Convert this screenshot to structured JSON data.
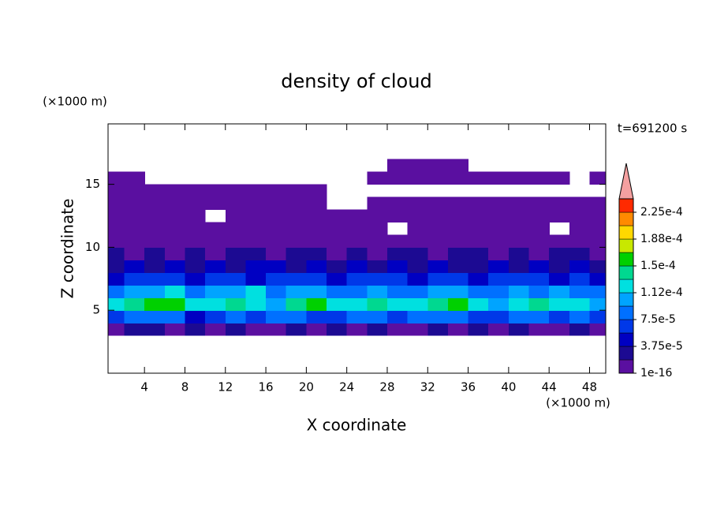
{
  "chart_data": {
    "type": "contour",
    "title": "density of cloud",
    "x_label": "X coordinate",
    "y_label": "Z coordinate",
    "x_unit": "(×1000 m)",
    "y_unit": "(×1000 m)",
    "annotation": "t=691200 s",
    "xlim": [
      0.4,
      49.6
    ],
    "ylim": [
      0,
      19.8
    ],
    "xticks": [
      4,
      8,
      12,
      16,
      20,
      24,
      28,
      32,
      36,
      40,
      44,
      48
    ],
    "yticks": [
      5,
      10,
      15
    ],
    "x": [
      1,
      3,
      5,
      7,
      9,
      11,
      13,
      15,
      17,
      19,
      21,
      23,
      25,
      27,
      29,
      31,
      33,
      35,
      37,
      39,
      41,
      43,
      45,
      47,
      49
    ],
    "z": [
      3.5,
      4.5,
      5.5,
      6.5,
      7.5,
      8.5,
      9.5,
      10.5,
      11.5,
      12.5,
      13.5,
      14.5,
      15.5,
      16.5
    ],
    "values": [
      [
        1e-05,
        2e-05,
        2e-05,
        1e-05,
        2e-05,
        1e-05,
        2e-05,
        1e-05,
        1e-05,
        2e-05,
        1e-05,
        2e-05,
        1e-05,
        2e-05,
        1e-05,
        1e-05,
        2e-05,
        1e-05,
        2e-05,
        1e-05,
        2e-05,
        1e-05,
        1e-05,
        2e-05,
        1e-05
      ],
      [
        6e-05,
        8e-05,
        9e-05,
        8e-05,
        5e-05,
        7e-05,
        8e-05,
        6e-05,
        9e-05,
        8e-05,
        7e-05,
        6e-05,
        8e-05,
        9e-05,
        7e-05,
        8e-05,
        9e-05,
        8e-05,
        7e-05,
        6e-05,
        8e-05,
        9e-05,
        7e-05,
        8e-05,
        6e-05
      ],
      [
        0.00012,
        0.00014,
        0.000155,
        0.00016,
        0.00013,
        0.00012,
        0.000135,
        0.00013,
        0.00011,
        0.00014,
        0.000155,
        0.00012,
        0.00013,
        0.00014,
        0.00013,
        0.00012,
        0.000145,
        0.00015,
        0.00012,
        0.00011,
        0.00013,
        0.00014,
        0.00012,
        0.00013,
        0.00011
      ],
      [
        9e-05,
        0.00011,
        0.0001,
        0.000115,
        9e-05,
        0.0001,
        0.00011,
        0.000115,
        9e-05,
        0.0001,
        0.00011,
        8e-05,
        9e-05,
        0.0001,
        8e-05,
        9e-05,
        0.00011,
        0.0001,
        9e-05,
        8e-05,
        0.0001,
        9e-05,
        0.00011,
        8e-05,
        9e-05
      ],
      [
        5e-05,
        6e-05,
        7e-05,
        6e-05,
        5e-05,
        6e-05,
        7e-05,
        5e-05,
        6e-05,
        7e-05,
        6e-05,
        5e-05,
        6e-05,
        7e-05,
        6e-05,
        5e-05,
        6e-05,
        7e-05,
        5e-05,
        6e-05,
        7e-05,
        6e-05,
        5e-05,
        6e-05,
        5e-05
      ],
      [
        3e-05,
        4e-05,
        3e-05,
        4e-05,
        3e-05,
        4e-05,
        3e-05,
        4e-05,
        4e-05,
        3e-05,
        4e-05,
        3e-05,
        4e-05,
        3e-05,
        4e-05,
        3e-05,
        4e-05,
        3e-05,
        3e-05,
        4e-05,
        3e-05,
        4e-05,
        3e-05,
        4e-05,
        3e-05
      ],
      [
        2e-05,
        1.5e-05,
        2.5e-05,
        1.5e-05,
        2e-05,
        1.5e-05,
        2.5e-05,
        2e-05,
        1.5e-05,
        2e-05,
        2.5e-05,
        1.5e-05,
        2e-05,
        1.5e-05,
        2.5e-05,
        2e-05,
        1.5e-05,
        2e-05,
        2.5e-05,
        1.5e-05,
        2e-05,
        1.5e-05,
        2e-05,
        2.5e-05,
        1.5e-05
      ],
      [
        1e-05,
        1e-05,
        1e-05,
        1e-05,
        1e-05,
        1e-05,
        1e-05,
        1e-05,
        1e-05,
        1e-05,
        1e-05,
        1e-05,
        1e-05,
        1e-05,
        1e-05,
        1e-05,
        1e-05,
        1e-05,
        1e-05,
        1e-05,
        1e-05,
        1e-05,
        1e-05,
        1e-05,
        1e-05
      ],
      [
        5e-06,
        5e-06,
        5e-06,
        5e-06,
        5e-06,
        5e-06,
        5e-06,
        5e-06,
        5e-06,
        5e-06,
        5e-06,
        5e-06,
        5e-06,
        5e-06,
        null,
        5e-06,
        5e-06,
        5e-06,
        5e-06,
        5e-06,
        5e-06,
        5e-06,
        null,
        5e-06,
        5e-06
      ],
      [
        5e-06,
        5e-06,
        5e-06,
        5e-06,
        5e-06,
        null,
        5e-06,
        5e-06,
        5e-06,
        5e-06,
        5e-06,
        5e-06,
        5e-06,
        5e-06,
        5e-06,
        5e-06,
        5e-06,
        5e-06,
        5e-06,
        5e-06,
        5e-06,
        5e-06,
        5e-06,
        5e-06,
        5e-06
      ],
      [
        5e-06,
        5e-06,
        5e-06,
        5e-06,
        5e-06,
        5e-06,
        5e-06,
        5e-06,
        5e-06,
        5e-06,
        5e-06,
        null,
        null,
        5e-06,
        5e-06,
        5e-06,
        5e-06,
        5e-06,
        5e-06,
        5e-06,
        5e-06,
        5e-06,
        5e-06,
        5e-06,
        5e-06
      ],
      [
        5e-06,
        5e-06,
        5e-06,
        5e-06,
        5e-06,
        5e-06,
        5e-06,
        5e-06,
        5e-06,
        5e-06,
        5e-06,
        null,
        null,
        null,
        null,
        null,
        null,
        null,
        null,
        null,
        null,
        null,
        null,
        null,
        null
      ],
      [
        5e-06,
        5e-06,
        null,
        null,
        null,
        null,
        null,
        null,
        null,
        null,
        null,
        null,
        null,
        5e-06,
        5e-06,
        5e-06,
        5e-06,
        5e-06,
        5e-06,
        5e-06,
        5e-06,
        5e-06,
        5e-06,
        null,
        5e-06
      ],
      [
        null,
        null,
        null,
        null,
        null,
        null,
        null,
        null,
        null,
        null,
        null,
        null,
        null,
        null,
        5e-06,
        5e-06,
        5e-06,
        5e-06,
        null,
        null,
        null,
        null,
        null,
        null,
        null
      ]
    ],
    "levels": [
      1e-16,
      1.875e-05,
      3.75e-05,
      5.625e-05,
      7.5e-05,
      9.375e-05,
      0.0001125,
      0.00013125,
      0.00015,
      0.00016875,
      0.0001875,
      0.00020625,
      0.000225,
      0.00024375
    ],
    "colors": [
      "#5a0fa0",
      "#1c0a92",
      "#0000c2",
      "#0038e8",
      "#0070ff",
      "#00a4ff",
      "#00e0e0",
      "#00d890",
      "#00d000",
      "#c8e800",
      "#ffd800",
      "#ff8a00",
      "#ff2a00"
    ],
    "extend_color": "#f4a0a0",
    "colorbar_ticks": [
      {
        "value": 1e-16,
        "label": "1e-16"
      },
      {
        "value": 3.75e-05,
        "label": "3.75e-5"
      },
      {
        "value": 7.5e-05,
        "label": "7.5e-5"
      },
      {
        "value": 0.0001125,
        "label": "1.12e-4"
      },
      {
        "value": 0.00015,
        "label": "1.5e-4"
      },
      {
        "value": 0.0001875,
        "label": "1.88e-4"
      },
      {
        "value": 0.000225,
        "label": "2.25e-4"
      }
    ]
  }
}
